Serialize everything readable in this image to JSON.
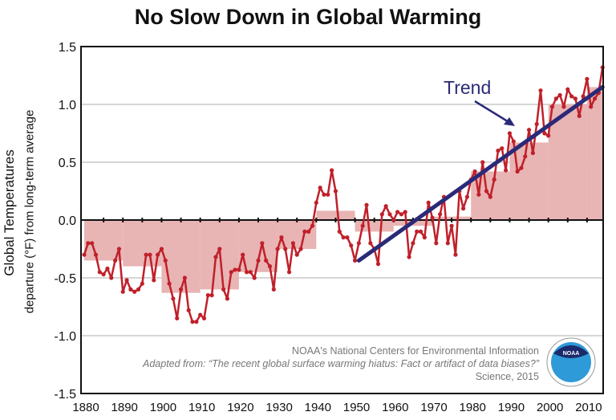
{
  "title": "No Slow Down in Global Warming",
  "chart_data": {
    "type": "line",
    "title": "No Slow Down in Global Warming",
    "ylabel_line1": "Global Temperatures",
    "ylabel_line2": "departure (°F) from long-term average",
    "xlabel": "",
    "xlim": [
      1880,
      2015
    ],
    "ylim": [
      -1.5,
      1.5
    ],
    "xticks": [
      "1880",
      "1890",
      "1900",
      "1910",
      "1920",
      "1930",
      "1940",
      "1950",
      "1960",
      "1970",
      "1980",
      "1990",
      "2000",
      "2010"
    ],
    "yticks": [
      "1.5",
      "1.0",
      "0.5",
      "0.0",
      "-0.5",
      "-1.0",
      "-1.5"
    ],
    "grid": true,
    "annual": {
      "start_year": 1880,
      "color": "#c0202a",
      "values": [
        -0.3,
        -0.2,
        -0.2,
        -0.3,
        -0.45,
        -0.47,
        -0.42,
        -0.5,
        -0.35,
        -0.25,
        -0.62,
        -0.52,
        -0.6,
        -0.62,
        -0.6,
        -0.55,
        -0.3,
        -0.3,
        -0.52,
        -0.3,
        -0.25,
        -0.35,
        -0.55,
        -0.68,
        -0.85,
        -0.6,
        -0.5,
        -0.78,
        -0.88,
        -0.88,
        -0.82,
        -0.85,
        -0.65,
        -0.65,
        -0.32,
        -0.25,
        -0.6,
        -0.68,
        -0.45,
        -0.43,
        -0.43,
        -0.3,
        -0.45,
        -0.45,
        -0.5,
        -0.35,
        -0.2,
        -0.35,
        -0.4,
        -0.6,
        -0.25,
        -0.15,
        -0.25,
        -0.45,
        -0.2,
        -0.3,
        -0.25,
        -0.1,
        -0.1,
        -0.05,
        0.15,
        0.28,
        0.22,
        0.22,
        0.43,
        0.25,
        -0.1,
        -0.15,
        -0.15,
        -0.22,
        -0.35,
        -0.2,
        -0.05,
        0.13,
        -0.2,
        -0.25,
        -0.38,
        0.05,
        0.12,
        0.05,
        0.0,
        0.07,
        0.05,
        0.07,
        -0.32,
        -0.2,
        -0.1,
        -0.1,
        -0.15,
        0.15,
        0.02,
        -0.2,
        0.05,
        0.2,
        -0.2,
        -0.05,
        -0.3,
        0.25,
        0.1,
        0.2,
        0.35,
        0.42,
        0.22,
        0.5,
        0.25,
        0.2,
        0.35,
        0.6,
        0.62,
        0.43,
        0.75,
        0.68,
        0.42,
        0.45,
        0.55,
        0.78,
        0.58,
        0.83,
        1.12,
        0.75,
        0.73,
        0.98,
        1.05,
        1.08,
        0.98,
        1.13,
        1.07,
        1.05,
        0.9,
        1.07,
        1.22,
        0.98,
        1.05,
        1.1,
        1.32
      ]
    },
    "decadal": {
      "color": "#e8b4b4",
      "decades": [
        1880,
        1890,
        1900,
        1910,
        1920,
        1930,
        1940,
        1950,
        1960,
        1970,
        1980,
        1990,
        2000,
        2010
      ],
      "values": [
        -0.35,
        -0.4,
        -0.63,
        -0.6,
        -0.45,
        -0.25,
        0.08,
        -0.1,
        -0.05,
        0.03,
        0.42,
        0.67,
        1.0,
        1.15
      ]
    },
    "trend": {
      "label": "Trend",
      "color": "#2a2a78",
      "x": [
        1951,
        2014
      ],
      "y": [
        -0.35,
        1.15
      ]
    }
  },
  "attribution": {
    "line1": "NOAA's National Centers for Environmental Information",
    "line2": "Adapted from: “The recent global surface warming hiatus: Fact or artifact of data biases?”",
    "line3": "Science, 2015",
    "logo_text": "NOAA"
  }
}
